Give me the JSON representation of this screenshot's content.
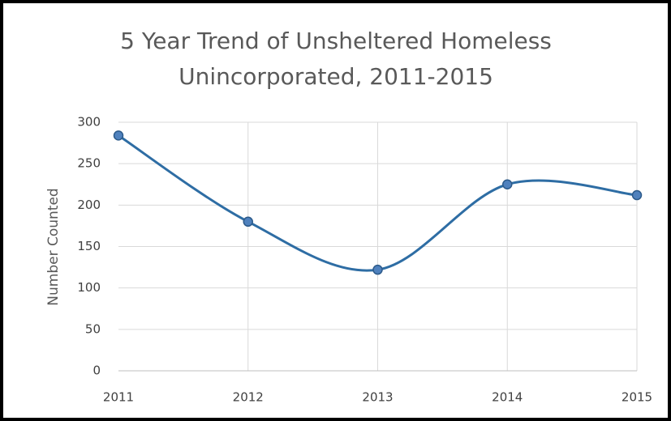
{
  "chart_data": {
    "type": "line",
    "title": [
      "5 Year Trend of Unsheltered Homeless",
      "Unincorporated, 2011-2015"
    ],
    "y_label": "Number Counted",
    "categories": [
      "2011",
      "2012",
      "2013",
      "2014",
      "2015"
    ],
    "series": [
      {
        "name": "Unsheltered Homeless",
        "color": "#2e6da4",
        "values": [
          284,
          180,
          122,
          225,
          212
        ]
      }
    ],
    "ylim": [
      0,
      300
    ],
    "yticks": [
      0,
      50,
      100,
      150,
      200,
      250,
      300
    ],
    "grid": true,
    "smooth": true,
    "markers": true
  }
}
